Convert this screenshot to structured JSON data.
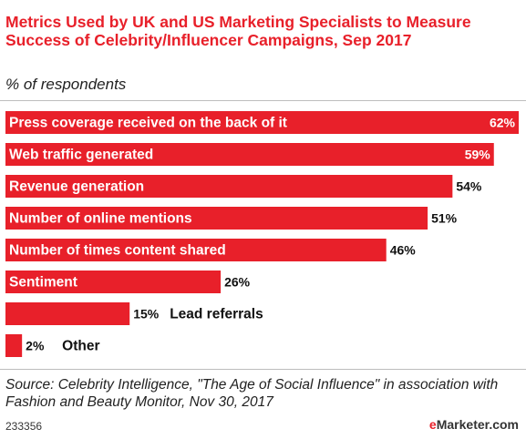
{
  "header": {
    "title": "Metrics Used by UK and US Marketing Specialists to Measure Success of Celebrity/Influencer Campaigns, Sep 2017",
    "subtitle": "% of respondents"
  },
  "chart_data": {
    "type": "bar",
    "orientation": "horizontal",
    "title": "Metrics Used by UK and US Marketing Specialists to Measure Success of Celebrity/Influencer Campaigns, Sep 2017",
    "subtitle": "% of respondents",
    "categories": [
      "Press coverage received on the back of it",
      "Web traffic generated",
      "Revenue generation",
      "Number of online mentions",
      "Number of times content shared",
      "Sentiment",
      "Lead referrals",
      "Other"
    ],
    "values": [
      62,
      59,
      54,
      51,
      46,
      26,
      15,
      2
    ],
    "value_labels": [
      "62%",
      "59%",
      "54%",
      "51%",
      "46%",
      "26%",
      "15%",
      "2%"
    ],
    "xlim": [
      0,
      62
    ],
    "grid": false,
    "bar_color": "#e8202a"
  },
  "footer": {
    "source": "Source: Celebrity Intelligence, \"The Age of Social Influence\" in association with Fashion and Beauty Monitor, Nov 30, 2017",
    "chart_id": "233356",
    "brand_prefix": "e",
    "brand_rest": "Marketer",
    "brand_suffix": ".com"
  }
}
